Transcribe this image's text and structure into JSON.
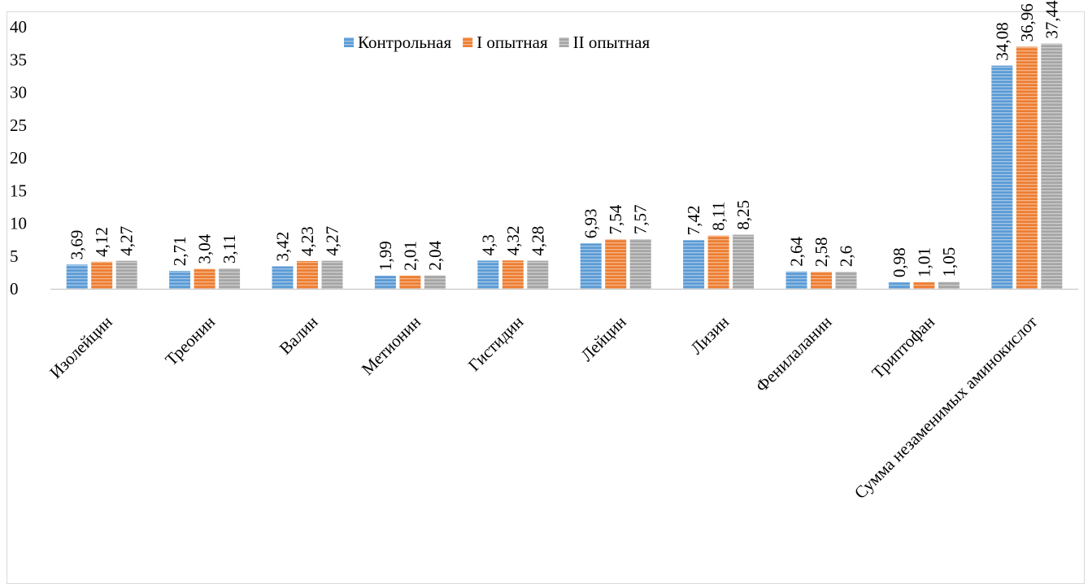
{
  "chart_data": {
    "type": "bar",
    "title": "",
    "xlabel": "",
    "ylabel": "",
    "categories": [
      "Изолейцин",
      "Треонин",
      "Валин",
      "Метионин",
      "Гистидин",
      "Лейцин",
      "Лизин",
      "Фенилаланин",
      "Триптофан",
      "Сумма незаменимых аминокислот"
    ],
    "series": [
      {
        "name": "Контрольная",
        "color": "#5b9bd5",
        "values": [
          3.69,
          2.71,
          3.42,
          1.99,
          4.3,
          6.93,
          7.42,
          2.64,
          0.98,
          34.08
        ],
        "labels": [
          "3,69",
          "2,71",
          "3,42",
          "1,99",
          "4,3",
          "6,93",
          "7,42",
          "2,64",
          "0,98",
          "34,08"
        ]
      },
      {
        "name": "I опытная",
        "color": "#ed7d31",
        "values": [
          4.12,
          3.04,
          4.23,
          2.01,
          4.32,
          7.54,
          8.11,
          2.58,
          1.01,
          36.96
        ],
        "labels": [
          "4,12",
          "3,04",
          "4,23",
          "2,01",
          "4,32",
          "7,54",
          "8,11",
          "2,58",
          "1,01",
          "36,96"
        ]
      },
      {
        "name": "II опытная",
        "color": "#a5a5a5",
        "values": [
          4.27,
          3.11,
          4.27,
          2.04,
          4.28,
          7.57,
          8.25,
          2.6,
          1.05,
          37.44
        ],
        "labels": [
          "4,27",
          "3,11",
          "4,27",
          "2,04",
          "4,28",
          "7,57",
          "8,25",
          "2,6",
          "1,05",
          "37,44"
        ]
      }
    ],
    "ylim": [
      0,
      40
    ],
    "yticks": [
      0,
      5,
      10,
      15,
      20,
      25,
      30,
      35,
      40
    ],
    "grid": false,
    "legend": "top-center",
    "bar_pattern": "horizontal-stripes"
  }
}
